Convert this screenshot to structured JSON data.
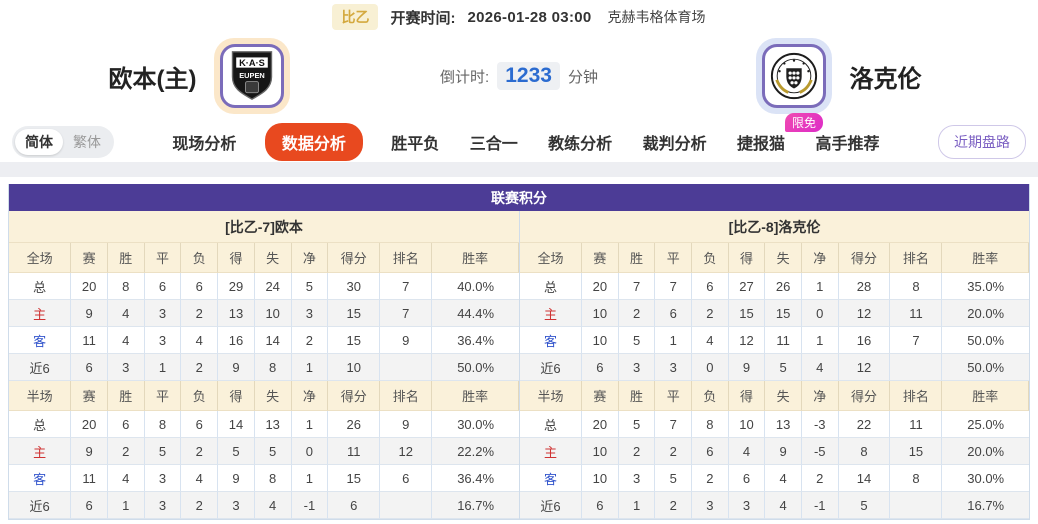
{
  "top_bar": {
    "league": "比乙",
    "kickoff_label": "开赛时间:",
    "kickoff_time": "2026-01-28 03:00",
    "venue": "克赫韦格体育场"
  },
  "header": {
    "home_team": "欧本(主)",
    "home_logo_text1": "K·A·S",
    "home_logo_text2": "EUPEN",
    "away_team": "洛克伦",
    "countdown_label": "倒计时:",
    "countdown_value": "1233",
    "countdown_unit": "分钟"
  },
  "nav": {
    "lang_simplified": "简体",
    "lang_traditional": "繁体",
    "tabs": [
      {
        "label": "现场分析",
        "active": false
      },
      {
        "label": "数据分析",
        "active": true
      },
      {
        "label": "胜平负",
        "active": false
      },
      {
        "label": "三合一",
        "active": false
      },
      {
        "label": "教练分析",
        "active": false
      },
      {
        "label": "裁判分析",
        "active": false
      },
      {
        "label": "捷报猫",
        "active": false,
        "badge": "限免"
      },
      {
        "label": "高手推荐",
        "active": false
      }
    ],
    "recent_button": "近期盘路"
  },
  "table": {
    "title": "联赛积分",
    "columns_full": [
      "全场",
      "赛",
      "胜",
      "平",
      "负",
      "得",
      "失",
      "净",
      "得分",
      "排名",
      "胜率"
    ],
    "columns_half": [
      "半场",
      "赛",
      "胜",
      "平",
      "负",
      "得",
      "失",
      "净",
      "得分",
      "排名",
      "胜率"
    ],
    "left": {
      "team_header": "[比乙-7]欧本",
      "full_rows": [
        [
          "总",
          "20",
          "8",
          "6",
          "6",
          "29",
          "24",
          "5",
          "30",
          "7",
          "40.0%"
        ],
        [
          "主",
          "9",
          "4",
          "3",
          "2",
          "13",
          "10",
          "3",
          "15",
          "7",
          "44.4%"
        ],
        [
          "客",
          "11",
          "4",
          "3",
          "4",
          "16",
          "14",
          "2",
          "15",
          "9",
          "36.4%"
        ],
        [
          "近6",
          "6",
          "3",
          "1",
          "2",
          "9",
          "8",
          "1",
          "10",
          "",
          "50.0%"
        ]
      ],
      "half_rows": [
        [
          "总",
          "20",
          "6",
          "8",
          "6",
          "14",
          "13",
          "1",
          "26",
          "9",
          "30.0%"
        ],
        [
          "主",
          "9",
          "2",
          "5",
          "2",
          "5",
          "5",
          "0",
          "11",
          "12",
          "22.2%"
        ],
        [
          "客",
          "11",
          "4",
          "3",
          "4",
          "9",
          "8",
          "1",
          "15",
          "6",
          "36.4%"
        ],
        [
          "近6",
          "6",
          "1",
          "3",
          "2",
          "3",
          "4",
          "-1",
          "6",
          "",
          "16.7%"
        ]
      ]
    },
    "right": {
      "team_header": "[比乙-8]洛克伦",
      "full_rows": [
        [
          "总",
          "20",
          "7",
          "7",
          "6",
          "27",
          "26",
          "1",
          "28",
          "8",
          "35.0%"
        ],
        [
          "主",
          "10",
          "2",
          "6",
          "2",
          "15",
          "15",
          "0",
          "12",
          "11",
          "20.0%"
        ],
        [
          "客",
          "10",
          "5",
          "1",
          "4",
          "12",
          "11",
          "1",
          "16",
          "7",
          "50.0%"
        ],
        [
          "近6",
          "6",
          "3",
          "3",
          "0",
          "9",
          "5",
          "4",
          "12",
          "",
          "50.0%"
        ]
      ],
      "half_rows": [
        [
          "总",
          "20",
          "5",
          "7",
          "8",
          "10",
          "13",
          "-3",
          "22",
          "11",
          "25.0%"
        ],
        [
          "主",
          "10",
          "2",
          "2",
          "6",
          "4",
          "9",
          "-5",
          "8",
          "15",
          "20.0%"
        ],
        [
          "客",
          "10",
          "3",
          "5",
          "2",
          "6",
          "4",
          "2",
          "14",
          "8",
          "30.0%"
        ],
        [
          "近6",
          "6",
          "1",
          "2",
          "3",
          "3",
          "4",
          "-1",
          "5",
          "",
          "16.7%"
        ]
      ]
    }
  },
  "colors": {
    "table_header_purple": "#4c3c96",
    "section_cream": "#faf1da",
    "active_tab_orange": "#e8491f",
    "badge_magenta": "#e935c1",
    "countdown_blue": "#2b6bd0",
    "league_gold": "#d4a93f",
    "home_row_red": "#cf3333",
    "away_row_blue": "#3355cc",
    "logo_border_purple": "#7b6cba",
    "home_glow": "#fbe7c9",
    "away_glow": "#dbe3f6"
  }
}
